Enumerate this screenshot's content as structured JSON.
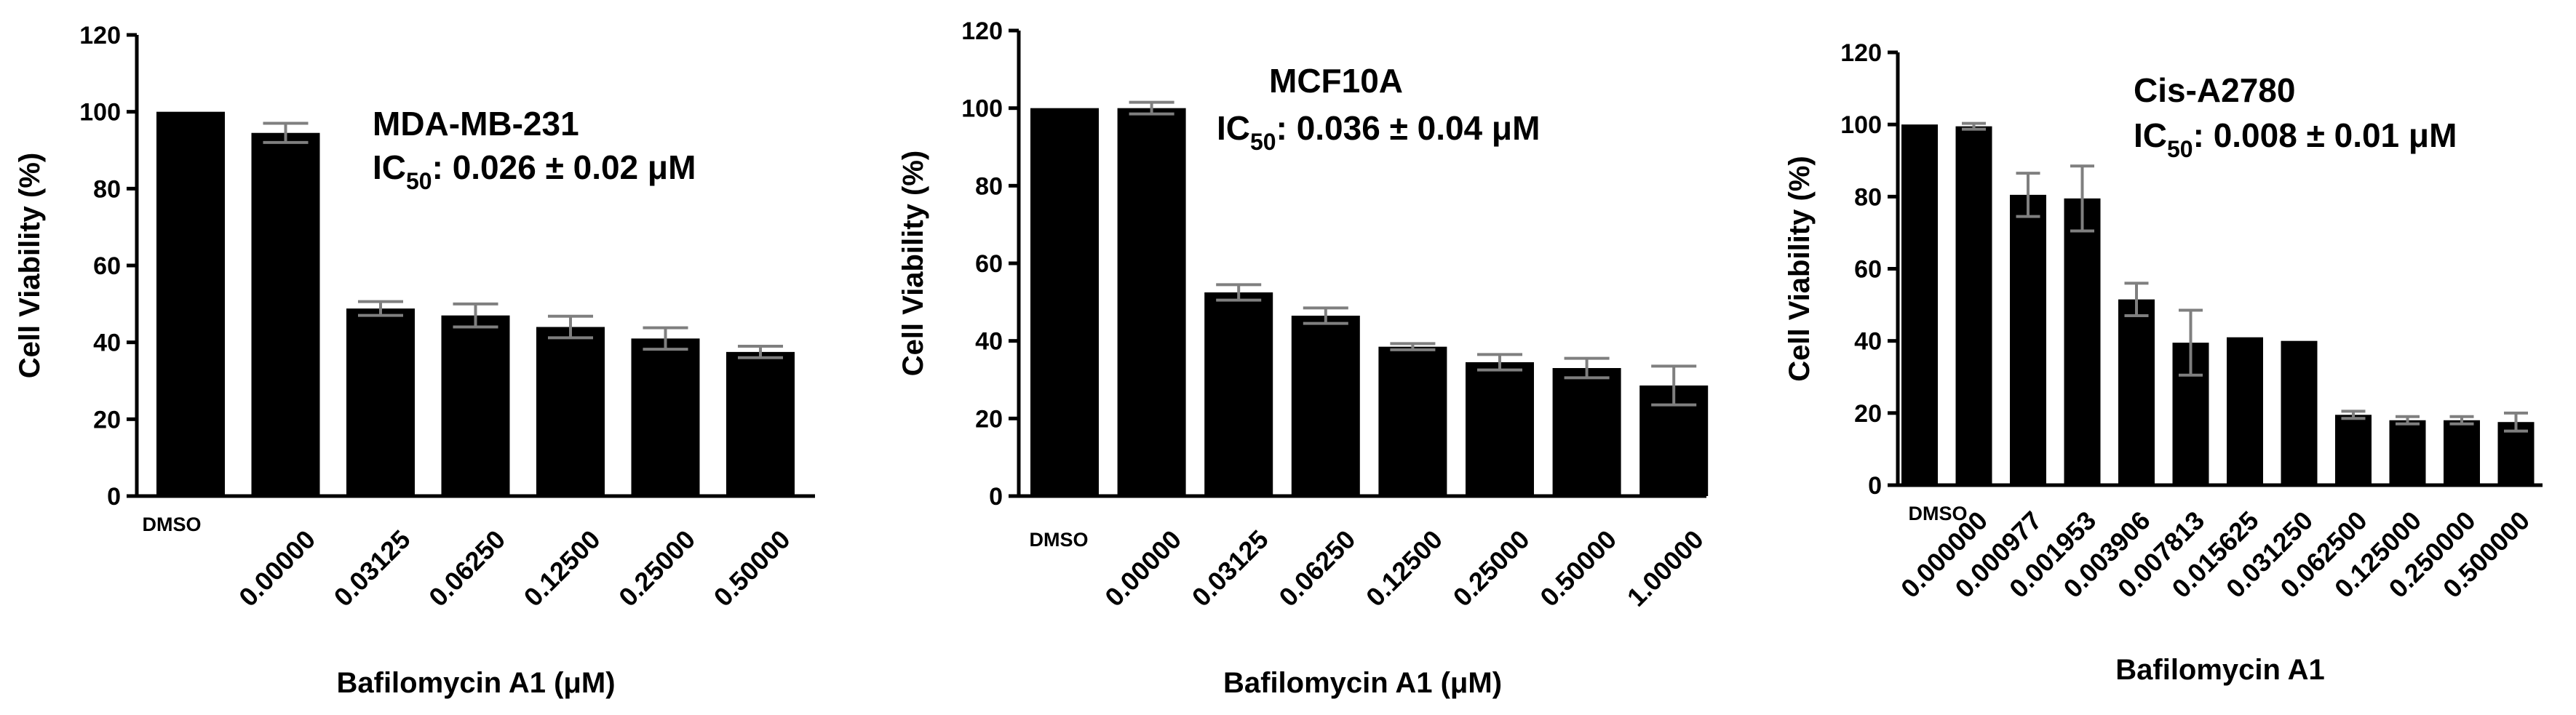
{
  "chart_data": [
    {
      "type": "bar",
      "title": "MDA-MB-231",
      "ic50_prefix": "IC",
      "ic50_sub": "50",
      "ic50_value": ": 0.026 ± 0.02 μM",
      "ylabel": "Cell Viability (%)",
      "xlabel": "Bafilomycin A1 (μM)",
      "ylim": [
        0,
        120
      ],
      "yticks": [
        "0",
        "20",
        "40",
        "60",
        "80",
        "100",
        "120"
      ],
      "categories": [
        "DMSO",
        "0.00000",
        "0.03125",
        "0.06250",
        "0.12500",
        "0.25000",
        "0.50000"
      ],
      "values": [
        100,
        94.5,
        48.8,
        47.0,
        44.0,
        41.0,
        37.5
      ],
      "errors": [
        0,
        2.5,
        1.8,
        3.0,
        2.8,
        2.8,
        1.5
      ],
      "grid": false,
      "bar_color": "#000000",
      "error_color": "#7f7f7f"
    },
    {
      "type": "bar",
      "title": "MCF10A",
      "ic50_prefix": "IC",
      "ic50_sub": "50",
      "ic50_value": ": 0.036 ± 0.04 μM",
      "ylabel": "Cell Viability (%)",
      "xlabel": "Bafilomycin A1 (μM)",
      "ylim": [
        0,
        120
      ],
      "yticks": [
        "0",
        "20",
        "40",
        "60",
        "80",
        "100",
        "120"
      ],
      "categories": [
        "DMSO",
        "0.00000",
        "0.03125",
        "0.06250",
        "0.12500",
        "0.25000",
        "0.50000",
        "1.00000"
      ],
      "values": [
        100,
        100,
        52.5,
        46.5,
        38.5,
        34.5,
        33.0,
        28.5
      ],
      "errors": [
        0,
        1.5,
        2.0,
        2.0,
        0.8,
        2.0,
        2.5,
        5.0
      ],
      "grid": false,
      "bar_color": "#000000",
      "error_color": "#7f7f7f"
    },
    {
      "type": "bar",
      "title": "Cis-A2780",
      "ic50_prefix": "IC",
      "ic50_sub": "50",
      "ic50_value": ": 0.008 ± 0.01 μM",
      "ylabel": "Cell Viability (%)",
      "xlabel": "Bafilomycin A1",
      "ylim": [
        0,
        120
      ],
      "yticks": [
        "0",
        "20",
        "40",
        "60",
        "80",
        "100",
        "120"
      ],
      "categories": [
        "DMSO",
        "0.000000",
        "0.000977",
        "0.001953",
        "0.003906",
        "0.007813",
        "0.015625",
        "0.031250",
        "0.062500",
        "0.125000",
        "0.250000",
        "0.500000"
      ],
      "values": [
        100,
        99.5,
        80.5,
        79.5,
        51.5,
        39.5,
        41.0,
        40.0,
        19.5,
        18.0,
        18.0,
        17.5
      ],
      "errors": [
        0,
        0.8,
        6.0,
        9.0,
        4.5,
        9.0,
        0,
        0,
        1.0,
        1.0,
        1.0,
        2.5
      ],
      "grid": false,
      "bar_color": "#000000",
      "error_color": "#7f7f7f"
    }
  ]
}
